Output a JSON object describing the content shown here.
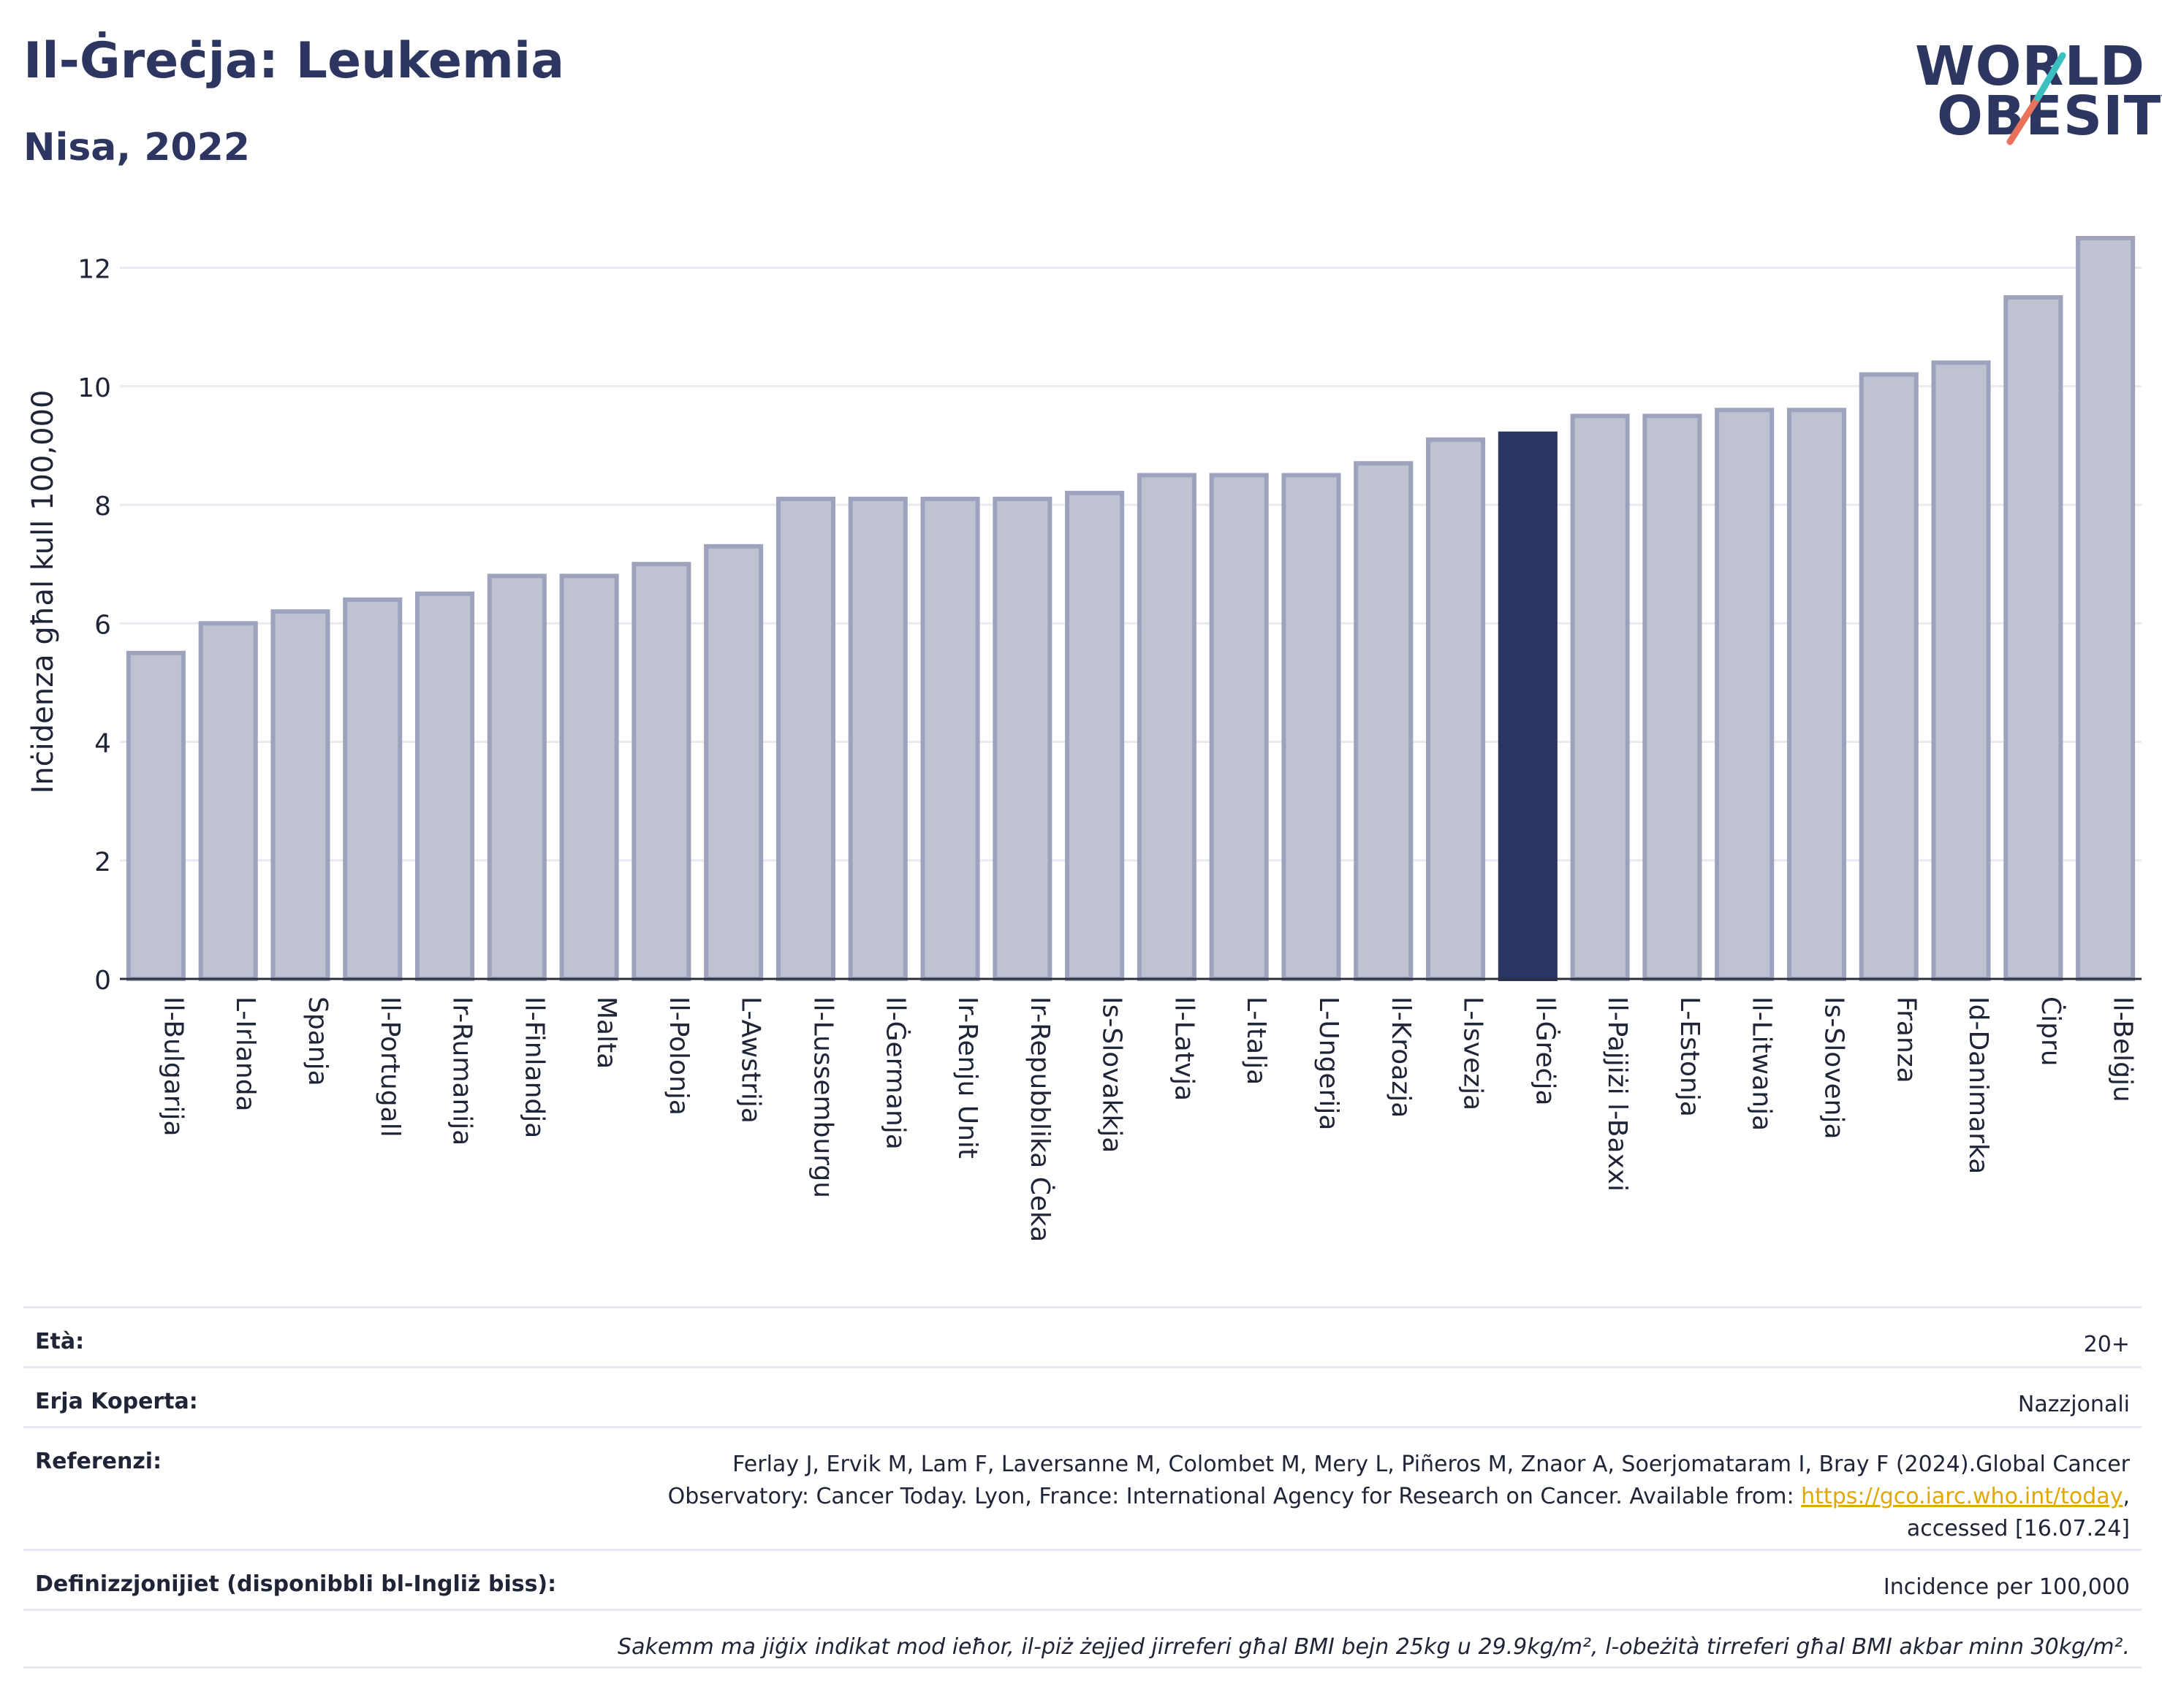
{
  "header": {
    "title": "Il-Ġreċja: Leukemia",
    "subtitle": "Nisa, 2022"
  },
  "logo": {
    "line1": "WORLD",
    "line2": "OBESITY",
    "accent_colors": [
      "#3bbfbf",
      "#e8735a"
    ]
  },
  "chart_data": {
    "type": "bar",
    "ylabel": "Inċidenza għal kull 100,000",
    "xlabel": "",
    "ylim": [
      0,
      12.5
    ],
    "yticks": [
      0,
      2,
      4,
      6,
      8,
      10,
      12
    ],
    "grid": true,
    "highlight_category": "Il-Ġreċja",
    "colors": {
      "bar": "#bfc3d1",
      "bar_edge": "#9da3bd",
      "highlight": "#2b3562"
    },
    "categories": [
      "Il-Bulgarija",
      "L-Irlanda",
      "Spanja",
      "Il-Portugall",
      "Ir-Rumanija",
      "Il-Finlandja",
      "Malta",
      "Il-Polonja",
      "L-Awstrija",
      "Il-Lussemburgu",
      "Il-Ġermanja",
      "Ir-Renju Unit",
      "Ir-Repubblika Ċeka",
      "Is-Slovakkja",
      "Il-Latvja",
      "L-Italja",
      "L-Ungerija",
      "Il-Kroazja",
      "L-Isvezja",
      "Il-Ġreċja",
      "Il-Pajjiżi l-Baxxi",
      "L-Estonja",
      "Il-Litwanja",
      "Is-Slovenja",
      "Franza",
      "Id-Danimarka",
      "Ċipru",
      "Il-Belġju"
    ],
    "values": [
      5.5,
      6.0,
      6.2,
      6.4,
      6.5,
      6.8,
      6.8,
      7.0,
      7.3,
      8.1,
      8.1,
      8.1,
      8.1,
      8.2,
      8.5,
      8.5,
      8.5,
      8.7,
      9.1,
      9.2,
      9.5,
      9.5,
      9.6,
      9.6,
      10.2,
      10.4,
      11.5,
      12.5
    ]
  },
  "meta": {
    "age_label": "Età:",
    "age_value": "20+",
    "area_label": "Erja Koperta:",
    "area_value": "Nazzjonali",
    "ref_label": "Referenzi:",
    "ref_text_1": "Ferlay J, Ervik M, Lam F, Laversanne M, Colombet M, Mery L, Piñeros M, Znaor A, Soerjomataram I, Bray F (2024).Global Cancer",
    "ref_text_2": "Observatory: Cancer Today. Lyon, France: International Agency for Research on Cancer. Available from: ",
    "ref_link": "https://gco.iarc.who.int/today",
    "ref_text_3": ",",
    "ref_text_4": "accessed [16.07.24]",
    "def_label": "Definizzjonijiet (disponibbli bl-Ingliż biss):",
    "def_value": "Incidence per 100,000",
    "note": "Sakemm ma jiġix indikat mod ieħor, il-piż żejjed jirreferi għal BMI bejn 25kg u 29.9kg/m², l-obeżità tirreferi għal BMI akbar minn 30kg/m²."
  }
}
